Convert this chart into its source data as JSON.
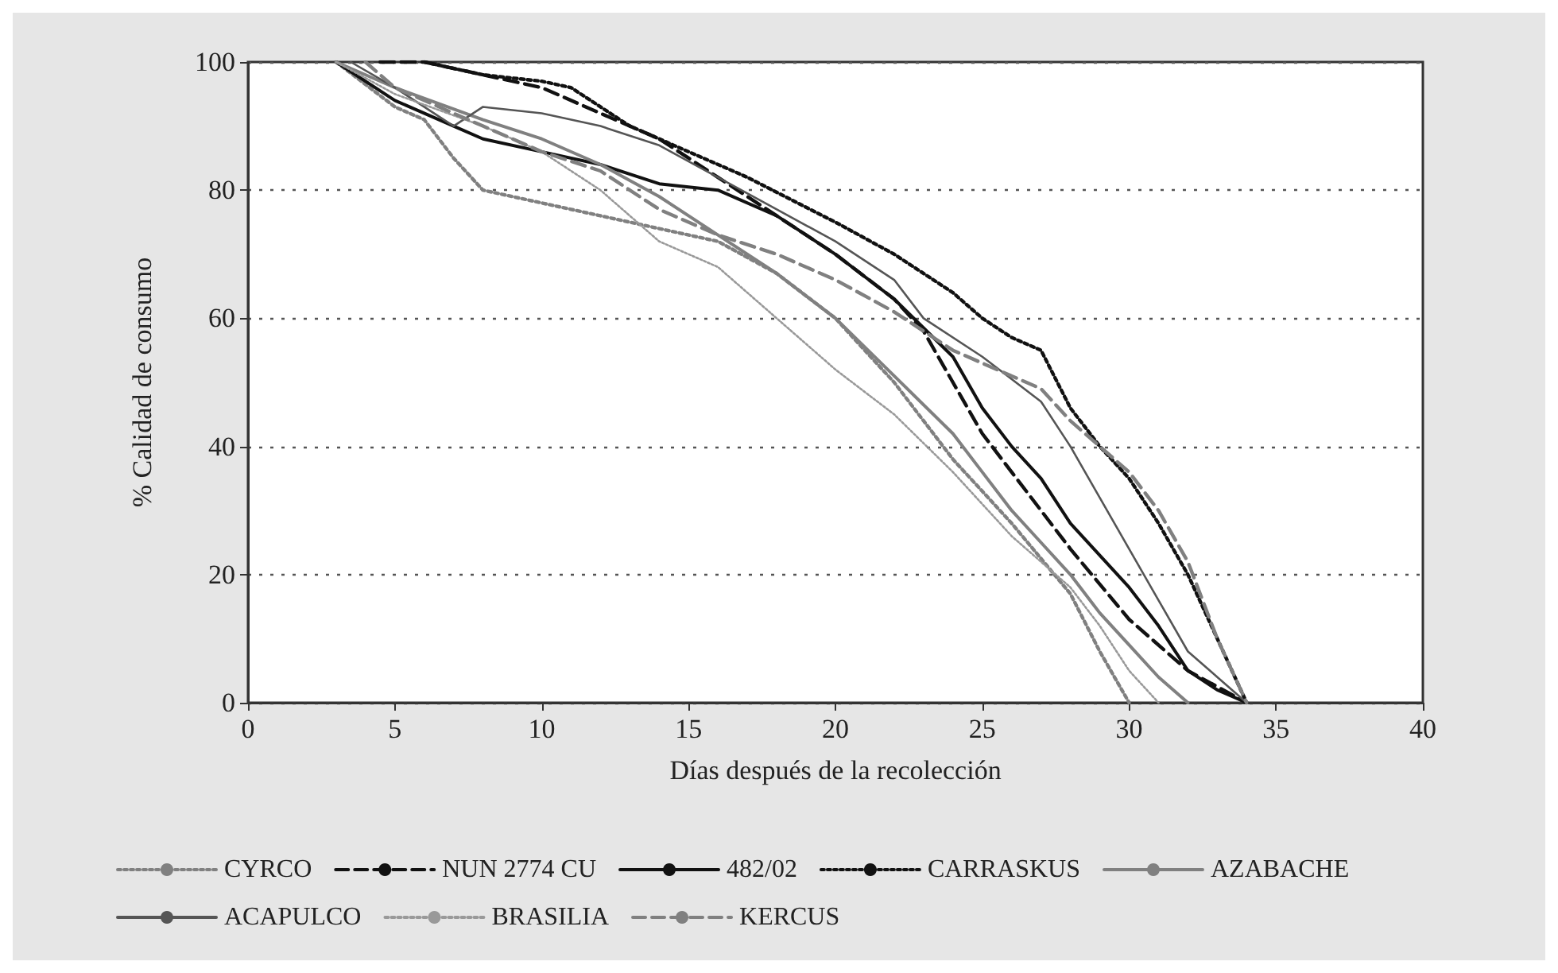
{
  "chart_data": {
    "type": "line",
    "xlabel": "Días después de la recolección",
    "ylabel": "% Calidad de consumo",
    "xlim": [
      0,
      40
    ],
    "xticks": [
      0,
      5,
      10,
      15,
      20,
      25,
      30,
      35,
      40
    ],
    "ylim": [
      0,
      100
    ],
    "yticks": [
      0,
      20,
      40,
      60,
      80,
      100
    ],
    "grid": "y",
    "legend": "bottom",
    "marker": "none",
    "series": [
      {
        "name": "CYRCO",
        "color": "#808080",
        "line_style": "dotted",
        "x": [
          3,
          5,
          6,
          7,
          8,
          10,
          12,
          14,
          16,
          18,
          20,
          22,
          24,
          26,
          28,
          29,
          30
        ],
        "values": [
          100,
          93,
          91,
          85,
          80,
          78,
          76,
          74,
          72,
          67,
          60,
          50,
          38,
          28,
          17,
          8,
          0
        ]
      },
      {
        "name": "NUN 2774 CU",
        "color": "#111111",
        "line_style": "dashed",
        "x": [
          4.5,
          6,
          8,
          10,
          12,
          14,
          16,
          18,
          20,
          22,
          23,
          24,
          25,
          26,
          27,
          28,
          30,
          32,
          34
        ],
        "values": [
          100,
          100,
          98,
          96,
          92,
          88,
          82,
          76,
          70,
          63,
          58,
          50,
          42,
          36,
          30,
          24,
          13,
          5,
          0
        ]
      },
      {
        "name": "482/02",
        "color": "#111111",
        "line_style": "solid",
        "x": [
          3,
          5,
          7,
          8,
          10,
          12,
          14,
          16,
          18,
          20,
          22,
          24,
          25,
          26,
          27,
          28,
          30,
          31,
          32,
          33,
          34
        ],
        "values": [
          100,
          94,
          90,
          88,
          86,
          84,
          81,
          80,
          76,
          70,
          63,
          54,
          46,
          40,
          35,
          28,
          18,
          12,
          5,
          2,
          0
        ]
      },
      {
        "name": "CARRASKUS",
        "color": "#111111",
        "line_style": "dotted",
        "x": [
          6,
          8,
          10,
          11,
          13,
          15,
          17,
          20,
          22,
          24,
          25,
          26,
          27,
          28,
          29,
          30,
          31,
          32,
          33,
          34
        ],
        "values": [
          100,
          98,
          97,
          96,
          90,
          86,
          82,
          75,
          70,
          64,
          60,
          57,
          55,
          46,
          40,
          35,
          28,
          20,
          10,
          0
        ]
      },
      {
        "name": "AZABACHE",
        "color": "#808080",
        "line_style": "solid",
        "x": [
          3,
          5,
          8,
          10,
          12,
          14,
          16,
          18,
          20,
          22,
          24,
          25,
          26,
          27,
          28,
          29,
          30,
          31,
          32
        ],
        "values": [
          100,
          96,
          91,
          88,
          84,
          79,
          73,
          67,
          60,
          51,
          42,
          36,
          30,
          25,
          20,
          14,
          9,
          4,
          0
        ]
      },
      {
        "name": "ACAPULCO",
        "color": "#555555",
        "line_style": "solid",
        "x": [
          3.5,
          5,
          7,
          8,
          10,
          12,
          14,
          16,
          18,
          20,
          22,
          23,
          25,
          27,
          28,
          29,
          30,
          31,
          32,
          33,
          34
        ],
        "values": [
          100,
          96,
          90,
          93,
          92,
          90,
          87,
          82,
          77,
          72,
          66,
          60,
          54,
          47,
          40,
          32,
          24,
          16,
          8,
          4,
          0
        ]
      },
      {
        "name": "BRASILIA",
        "color": "#999999",
        "line_style": "dotted",
        "x": [
          3,
          5,
          8,
          10,
          12,
          14,
          16,
          18,
          20,
          22,
          24,
          26,
          28,
          29,
          30,
          31
        ],
        "values": [
          100,
          95,
          90,
          86,
          80,
          72,
          68,
          60,
          52,
          45,
          36,
          26,
          18,
          12,
          5,
          0
        ]
      },
      {
        "name": "KERCUS",
        "color": "#808080",
        "line_style": "dashed",
        "x": [
          4,
          5,
          8,
          10,
          12,
          14,
          16,
          18,
          20,
          22,
          24,
          26,
          27,
          28,
          29,
          30,
          31,
          32,
          33,
          34
        ],
        "values": [
          100,
          96,
          90,
          86,
          83,
          77,
          73,
          70,
          66,
          61,
          55,
          51,
          49,
          44,
          40,
          36,
          30,
          22,
          10,
          0
        ]
      }
    ]
  }
}
